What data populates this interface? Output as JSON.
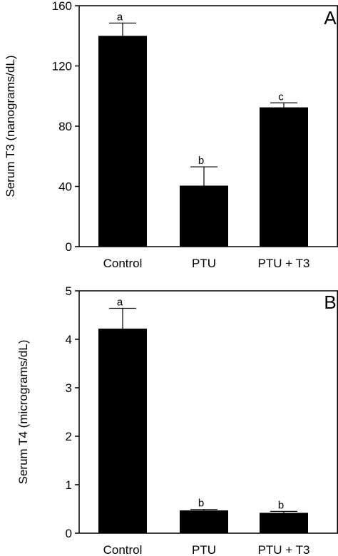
{
  "chart_data": [
    {
      "panel": "A",
      "type": "bar",
      "categories": [
        "Control",
        "PTU",
        "PTU + T3"
      ],
      "values": [
        140,
        40.5,
        92.5
      ],
      "errors": [
        8.5,
        12.5,
        3
      ],
      "significance": [
        "a",
        "b",
        "c"
      ],
      "ylabel": "Serum T3 (nanograms/dL)",
      "ylim": [
        0,
        160
      ],
      "yticks": [
        0,
        40,
        80,
        120,
        160
      ],
      "grid": false
    },
    {
      "panel": "B",
      "type": "bar",
      "categories": [
        "Control",
        "PTU",
        "PTU + T3"
      ],
      "values": [
        4.22,
        0.47,
        0.42
      ],
      "errors": [
        0.42,
        0.02,
        0.03
      ],
      "significance": [
        "a",
        "b",
        "b"
      ],
      "ylabel": "Serum T4 (micrograms/dL)",
      "ylim": [
        0,
        5
      ],
      "yticks": [
        0,
        1,
        2,
        3,
        4,
        5
      ],
      "grid": false
    }
  ],
  "colors": {
    "bar": "#000000",
    "axis": "#000000",
    "background": "#ffffff"
  }
}
